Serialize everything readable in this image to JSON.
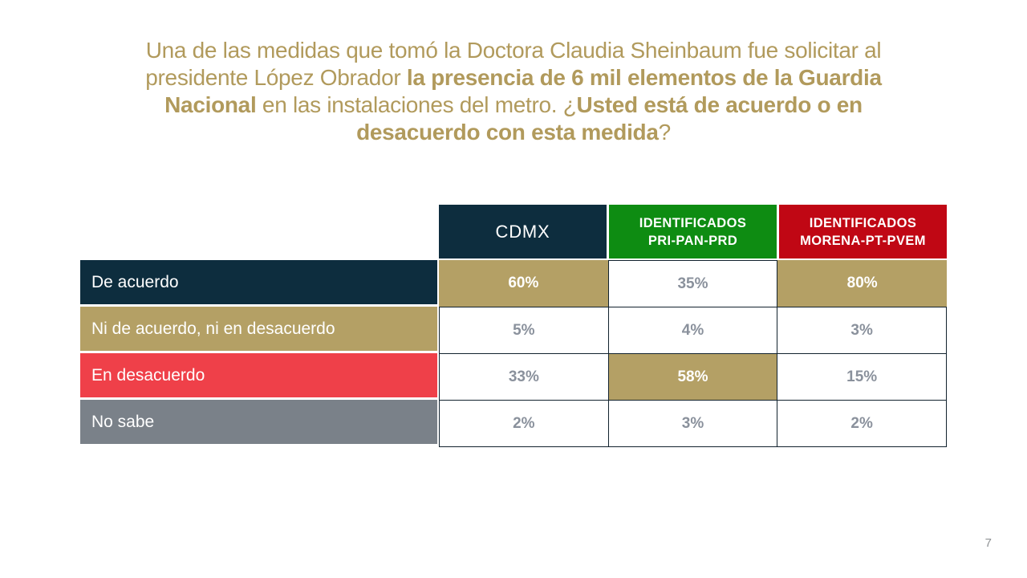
{
  "slide": {
    "page_number": "7",
    "background": "#FFFFFF"
  },
  "colors": {
    "title_gold": "#B19A5C",
    "gold_fill": "#B4A065",
    "navy": "#0D2D3E",
    "green": "#0E8C12",
    "red_header": "#C00714",
    "red_row": "#EF4049",
    "gray_row": "#7A8189",
    "value_gray": "#8A919C",
    "border_dark": "#12222E"
  },
  "title": {
    "lines": [
      [
        {
          "text": "Una de las medidas que tomó la Doctora Claudia Sheinbaum fue solicitar al",
          "bold": false
        }
      ],
      [
        {
          "text": "presidente López Obrador ",
          "bold": false
        },
        {
          "text": "la presencia de 6 mil elementos de la Guardia",
          "bold": true
        }
      ],
      [
        {
          "text": "Nacional",
          "bold": true
        },
        {
          "text": " en las instalaciones del metro. ¿",
          "bold": false
        },
        {
          "text": "Usted está de acuerdo o en",
          "bold": true
        }
      ],
      [
        {
          "text": "desacuerdo con esta medida",
          "bold": true
        },
        {
          "text": "?",
          "bold": false
        }
      ]
    ]
  },
  "table": {
    "columns": [
      {
        "id": "cdmx",
        "label_lines": [
          "CDMX"
        ],
        "color": "#0D2D3E"
      },
      {
        "id": "pri-pan-prd",
        "label_lines": [
          "IDENTIFICADOS",
          "PRI-PAN-PRD"
        ],
        "color": "#0E8C12"
      },
      {
        "id": "morena-pt-pvem",
        "label_lines": [
          "IDENTIFICADOS",
          "MORENA-PT-PVEM"
        ],
        "color": "#C00714"
      }
    ],
    "rows": [
      {
        "label": "De acuerdo",
        "row_color": "#0D2D3E",
        "values": [
          {
            "text": "60%",
            "highlight": true
          },
          {
            "text": "35%",
            "highlight": false
          },
          {
            "text": "80%",
            "highlight": true
          }
        ]
      },
      {
        "label": "Ni de acuerdo, ni en desacuerdo",
        "row_color": "#B4A065",
        "values": [
          {
            "text": "5%",
            "highlight": false
          },
          {
            "text": "4%",
            "highlight": false
          },
          {
            "text": "3%",
            "highlight": false
          }
        ]
      },
      {
        "label": "En desacuerdo",
        "row_color": "#EF4049",
        "values": [
          {
            "text": "33%",
            "highlight": false
          },
          {
            "text": "58%",
            "highlight": true
          },
          {
            "text": "15%",
            "highlight": false
          }
        ]
      },
      {
        "label": "No sabe",
        "row_color": "#7A8189",
        "values": [
          {
            "text": "2%",
            "highlight": false
          },
          {
            "text": "3%",
            "highlight": false
          },
          {
            "text": "2%",
            "highlight": false
          }
        ]
      }
    ]
  },
  "chart_data": {
    "type": "table",
    "title": "Una de las medidas que tomó la Doctora Claudia Sheinbaum fue solicitar al presidente López Obrador la presencia de 6 mil elementos de la Guardia Nacional en las instalaciones del metro. ¿Usted está de acuerdo o en desacuerdo con esta medida?",
    "unit": "%",
    "categories": [
      "De acuerdo",
      "Ni de acuerdo, ni en desacuerdo",
      "En desacuerdo",
      "No sabe"
    ],
    "series": [
      {
        "name": "CDMX",
        "values": [
          60,
          5,
          33,
          2
        ]
      },
      {
        "name": "IDENTIFICADOS PRI-PAN-PRD",
        "values": [
          35,
          4,
          58,
          3
        ]
      },
      {
        "name": "IDENTIFICADOS MORENA-PT-PVEM",
        "values": [
          80,
          3,
          15,
          2
        ]
      }
    ],
    "highlighted_values": [
      {
        "series": "CDMX",
        "category": "De acuerdo",
        "value": 60
      },
      {
        "series": "IDENTIFICADOS MORENA-PT-PVEM",
        "category": "De acuerdo",
        "value": 80
      },
      {
        "series": "IDENTIFICADOS PRI-PAN-PRD",
        "category": "En desacuerdo",
        "value": 58
      }
    ]
  }
}
